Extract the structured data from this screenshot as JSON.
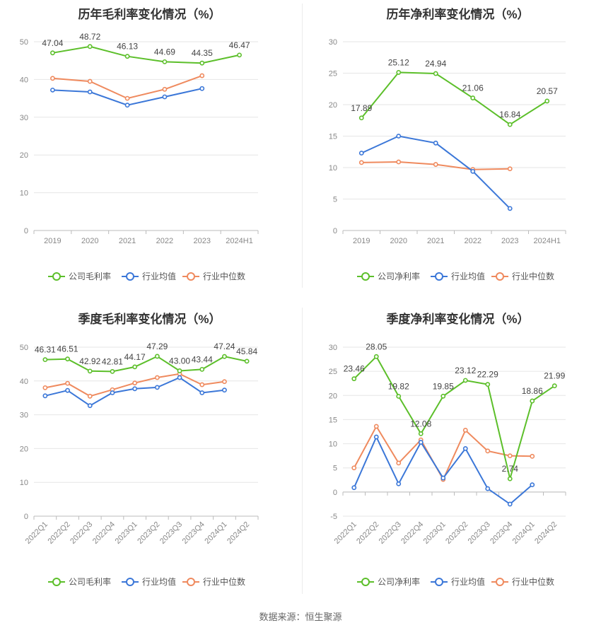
{
  "legend": {
    "company_gross": "公司毛利率",
    "company_net": "公司净利率",
    "industry_avg": "行业均值",
    "industry_median": "行业中位数"
  },
  "colors": {
    "company": "#5cbf2a",
    "avg": "#3b77d8",
    "median": "#ef8a5e"
  },
  "source": "数据来源：恒生聚源",
  "chart_data": [
    {
      "type": "line",
      "title": "历年毛利率变化情况（%）",
      "categories": [
        "2019",
        "2020",
        "2021",
        "2022",
        "2023",
        "2024H1"
      ],
      "ylim": [
        0,
        50
      ],
      "yticks": [
        0,
        10,
        20,
        30,
        40,
        50
      ],
      "grid": true,
      "legend_position": "bottom",
      "series": [
        {
          "name": "公司毛利率",
          "values": [
            47.04,
            48.72,
            46.13,
            44.69,
            44.35,
            46.47
          ],
          "labels": [
            "47.04",
            "48.72",
            "46.13",
            "44.69",
            "44.35",
            "46.47"
          ]
        },
        {
          "name": "行业均值",
          "values": [
            37.2,
            36.7,
            33.2,
            35.4,
            37.6,
            null
          ]
        },
        {
          "name": "行业中位数",
          "values": [
            40.3,
            39.5,
            35.0,
            37.4,
            41.0,
            null
          ]
        }
      ]
    },
    {
      "type": "line",
      "title": "历年净利率变化情况（%）",
      "categories": [
        "2019",
        "2020",
        "2021",
        "2022",
        "2023",
        "2024H1"
      ],
      "ylim": [
        0,
        30
      ],
      "yticks": [
        0,
        5,
        10,
        15,
        20,
        25,
        30
      ],
      "grid": true,
      "legend_position": "bottom",
      "series": [
        {
          "name": "公司净利率",
          "values": [
            17.89,
            25.12,
            24.94,
            21.06,
            16.84,
            20.57
          ],
          "labels": [
            "17.89",
            "25.12",
            "24.94",
            "21.06",
            "16.84",
            "20.57"
          ]
        },
        {
          "name": "行业均值",
          "values": [
            12.3,
            15.0,
            13.9,
            9.4,
            3.5,
            null
          ]
        },
        {
          "name": "行业中位数",
          "values": [
            10.8,
            10.9,
            10.5,
            9.7,
            9.8,
            null
          ]
        }
      ]
    },
    {
      "type": "line",
      "title": "季度毛利率变化情况（%）",
      "categories": [
        "2022Q1",
        "2022Q2",
        "2022Q3",
        "2022Q4",
        "2023Q1",
        "2023Q2",
        "2023Q3",
        "2023Q4",
        "2024Q1",
        "2024Q2"
      ],
      "ylim": [
        0,
        50
      ],
      "yticks": [
        0,
        10,
        20,
        30,
        40,
        50
      ],
      "grid": true,
      "legend_position": "bottom",
      "series": [
        {
          "name": "公司毛利率",
          "values": [
            46.31,
            46.51,
            42.92,
            42.81,
            44.17,
            47.29,
            43.0,
            43.44,
            47.24,
            45.84
          ],
          "labels": [
            "46.31",
            "46.51",
            "42.92",
            "42.81",
            "44.17",
            "47.29",
            "43.00",
            "43.44",
            "47.24",
            "45.84"
          ]
        },
        {
          "name": "行业均值",
          "values": [
            35.6,
            37.2,
            32.7,
            36.5,
            37.7,
            38.1,
            41.0,
            36.5,
            37.3,
            null
          ]
        },
        {
          "name": "行业中位数",
          "values": [
            38.0,
            39.3,
            35.5,
            37.4,
            39.4,
            41.0,
            42.1,
            38.9,
            39.8,
            null
          ]
        }
      ]
    },
    {
      "type": "line",
      "title": "季度净利率变化情况（%）",
      "categories": [
        "2022Q1",
        "2022Q2",
        "2022Q3",
        "2022Q4",
        "2023Q1",
        "2023Q2",
        "2023Q3",
        "2023Q4",
        "2024Q1",
        "2024Q2"
      ],
      "ylim": [
        -5,
        30
      ],
      "yticks": [
        -5,
        0,
        5,
        10,
        15,
        20,
        25,
        30
      ],
      "grid": true,
      "legend_position": "bottom",
      "series": [
        {
          "name": "公司净利率",
          "values": [
            23.46,
            28.05,
            19.82,
            12.08,
            19.85,
            23.12,
            22.29,
            2.74,
            18.86,
            21.99
          ],
          "labels": [
            "23.46",
            "28.05",
            "19.82",
            "12.08",
            "19.85",
            "23.12",
            "22.29",
            "2.74",
            "18.86",
            "21.99"
          ]
        },
        {
          "name": "行业均值",
          "values": [
            0.9,
            11.4,
            1.7,
            10.3,
            2.9,
            9.0,
            0.7,
            -2.5,
            1.5,
            null
          ]
        },
        {
          "name": "行业中位数",
          "values": [
            5.0,
            13.6,
            6.0,
            10.8,
            2.6,
            12.8,
            8.5,
            7.5,
            7.4,
            null
          ]
        }
      ]
    }
  ]
}
